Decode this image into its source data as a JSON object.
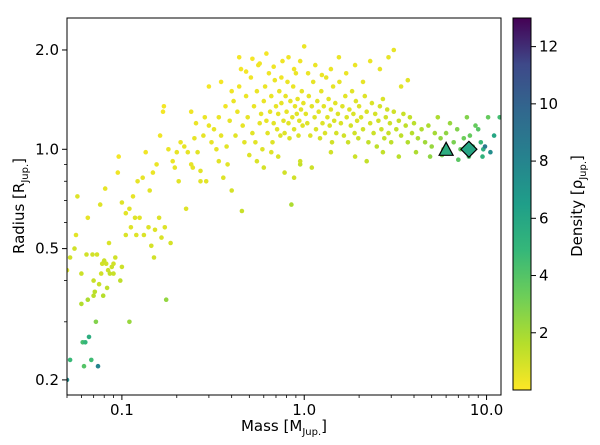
{
  "chart_data": {
    "type": "scatter",
    "title": "",
    "xlabel": {
      "main": "Mass [M",
      "sub": "Jup.",
      "close": "]"
    },
    "ylabel": {
      "main": "Radius [R",
      "sub": "Jup.",
      "close": "]"
    },
    "xscale": "log",
    "yscale": "log",
    "xlim": [
      0.05,
      12
    ],
    "ylim": [
      0.18,
      2.5
    ],
    "xticks": [
      {
        "value": 0.1,
        "label": "0.1"
      },
      {
        "value": 1.0,
        "label": "1.0"
      },
      {
        "value": 10.0,
        "label": "10.0"
      }
    ],
    "yticks": [
      {
        "value": 0.2,
        "label": "0.2"
      },
      {
        "value": 0.5,
        "label": "0.5"
      },
      {
        "value": 1.0,
        "label": "1.0"
      },
      {
        "value": 2.0,
        "label": "2.0"
      }
    ],
    "grid": false,
    "colorbar": {
      "label": "Density [ρ",
      "label_sub": "Jup.",
      "label_close": "]",
      "min": 0,
      "max": 13,
      "ticks": [
        {
          "value": 2,
          "label": "2"
        },
        {
          "value": 4,
          "label": "4"
        },
        {
          "value": 6,
          "label": "6"
        },
        {
          "value": 8,
          "label": "8"
        },
        {
          "value": 10,
          "label": "10"
        },
        {
          "value": 12,
          "label": "12"
        }
      ],
      "colormap": "viridis_r"
    },
    "points": [
      [
        0.05,
        0.2,
        7.5
      ],
      [
        0.05,
        0.43,
        0.8
      ],
      [
        0.052,
        0.47,
        1.0
      ],
      [
        0.052,
        0.23,
        4.8
      ],
      [
        0.055,
        0.5,
        1.0
      ],
      [
        0.056,
        0.55,
        0.6
      ],
      [
        0.057,
        0.72,
        0.7
      ],
      [
        0.06,
        0.42,
        1.1
      ],
      [
        0.06,
        0.34,
        1.7
      ],
      [
        0.061,
        0.26,
        4.4
      ],
      [
        0.062,
        0.22,
        4.0
      ],
      [
        0.063,
        0.26,
        5.0
      ],
      [
        0.064,
        0.48,
        1.0
      ],
      [
        0.065,
        0.35,
        1.8
      ],
      [
        0.065,
        0.62,
        0.5
      ],
      [
        0.066,
        0.27,
        5.5
      ],
      [
        0.068,
        0.23,
        4.6
      ],
      [
        0.069,
        0.48,
        1.0
      ],
      [
        0.07,
        0.4,
        1.2
      ],
      [
        0.07,
        0.36,
        1.5
      ],
      [
        0.071,
        0.37,
        1.5
      ],
      [
        0.072,
        0.3,
        2.8
      ],
      [
        0.073,
        0.48,
        0.9
      ],
      [
        0.074,
        0.22,
        8.0
      ],
      [
        0.075,
        0.39,
        1.2
      ],
      [
        0.076,
        0.68,
        0.7
      ],
      [
        0.077,
        0.42,
        1.0
      ],
      [
        0.078,
        0.45,
        1.0
      ],
      [
        0.079,
        0.36,
        1.6
      ],
      [
        0.08,
        0.46,
        1.1
      ],
      [
        0.081,
        0.76,
        0.5
      ],
      [
        0.082,
        0.45,
        1.0
      ],
      [
        0.083,
        0.38,
        1.4
      ],
      [
        0.084,
        0.43,
        1.1
      ],
      [
        0.085,
        0.52,
        0.8
      ],
      [
        0.086,
        0.42,
        1.3
      ],
      [
        0.088,
        0.44,
        1.1
      ],
      [
        0.09,
        0.42,
        1.2
      ],
      [
        0.09,
        0.45,
        1.0
      ],
      [
        0.092,
        0.47,
        1.0
      ],
      [
        0.095,
        0.85,
        0.3
      ],
      [
        0.096,
        0.95,
        0.2
      ],
      [
        0.098,
        0.4,
        1.4
      ],
      [
        0.1,
        0.44,
        1.1
      ],
      [
        0.1,
        0.69,
        0.7
      ],
      [
        0.105,
        0.64,
        0.6
      ],
      [
        0.105,
        0.55,
        0.8
      ],
      [
        0.11,
        0.66,
        0.6
      ],
      [
        0.11,
        0.3,
        2.3
      ],
      [
        0.112,
        0.58,
        0.7
      ],
      [
        0.115,
        0.72,
        0.5
      ],
      [
        0.118,
        0.62,
        0.7
      ],
      [
        0.12,
        0.55,
        0.7
      ],
      [
        0.122,
        0.8,
        0.5
      ],
      [
        0.125,
        0.62,
        0.6
      ],
      [
        0.13,
        0.82,
        0.5
      ],
      [
        0.132,
        0.55,
        0.8
      ],
      [
        0.135,
        0.98,
        0.3
      ],
      [
        0.14,
        0.58,
        0.7
      ],
      [
        0.142,
        0.75,
        0.6
      ],
      [
        0.145,
        0.51,
        0.9
      ],
      [
        0.148,
        0.85,
        0.4
      ],
      [
        0.15,
        0.47,
        1.0
      ],
      [
        0.152,
        0.57,
        0.7
      ],
      [
        0.155,
        0.9,
        0.4
      ],
      [
        0.16,
        0.62,
        0.7
      ],
      [
        0.162,
        1.1,
        0.3
      ],
      [
        0.165,
        0.54,
        0.8
      ],
      [
        0.168,
        1.3,
        0.2
      ],
      [
        0.17,
        1.35,
        0.2
      ],
      [
        0.172,
        0.58,
        0.7
      ],
      [
        0.175,
        0.35,
        2.4
      ],
      [
        0.18,
        1.0,
        0.4
      ],
      [
        0.185,
        0.52,
        0.9
      ],
      [
        0.19,
        0.92,
        0.4
      ],
      [
        0.195,
        0.88,
        0.5
      ],
      [
        0.2,
        0.98,
        0.5
      ],
      [
        0.205,
        0.8,
        0.6
      ],
      [
        0.21,
        1.05,
        0.4
      ],
      [
        0.22,
        1.02,
        0.5
      ],
      [
        0.225,
        0.66,
        0.7
      ],
      [
        0.23,
        0.98,
        0.5
      ],
      [
        0.24,
        1.3,
        0.3
      ],
      [
        0.245,
        0.88,
        0.5
      ],
      [
        0.25,
        1.08,
        0.5
      ],
      [
        0.255,
        1.2,
        0.4
      ],
      [
        0.26,
        0.98,
        0.6
      ],
      [
        0.27,
        0.8,
        0.6
      ],
      [
        0.28,
        1.1,
        0.5
      ],
      [
        0.285,
        1.25,
        0.4
      ],
      [
        0.29,
        0.8,
        0.6
      ],
      [
        0.3,
        1.18,
        0.4
      ],
      [
        0.31,
        1.05,
        0.5
      ],
      [
        0.32,
        1.15,
        0.5
      ],
      [
        0.33,
        1.0,
        0.5
      ],
      [
        0.34,
        1.25,
        0.4
      ],
      [
        0.35,
        1.1,
        0.5
      ],
      [
        0.36,
        0.82,
        0.7
      ],
      [
        0.37,
        1.35,
        0.3
      ],
      [
        0.375,
        1.02,
        0.6
      ],
      [
        0.38,
        0.9,
        0.6
      ],
      [
        0.39,
        1.22,
        0.5
      ],
      [
        0.4,
        0.75,
        0.9
      ],
      [
        0.41,
        1.4,
        0.4
      ],
      [
        0.42,
        1.1,
        0.6
      ],
      [
        0.43,
        1.3,
        0.4
      ],
      [
        0.44,
        1.55,
        0.3
      ],
      [
        0.45,
        1.75,
        0.2
      ],
      [
        0.455,
        0.65,
        1.2
      ],
      [
        0.46,
        1.18,
        0.5
      ],
      [
        0.47,
        1.05,
        0.6
      ],
      [
        0.48,
        1.45,
        0.4
      ],
      [
        0.49,
        1.25,
        0.5
      ],
      [
        0.5,
        0.96,
        0.7
      ],
      [
        0.51,
        1.65,
        0.3
      ],
      [
        0.52,
        1.12,
        0.6
      ],
      [
        0.53,
        1.35,
        0.4
      ],
      [
        0.54,
        1.05,
        0.6
      ],
      [
        0.55,
        1.5,
        0.4
      ],
      [
        0.56,
        1.8,
        0.3
      ],
      [
        0.57,
        1.2,
        0.5
      ],
      [
        0.58,
        1.28,
        0.5
      ],
      [
        0.59,
        1.0,
        0.7
      ],
      [
        0.6,
        1.4,
        0.4
      ],
      [
        0.61,
        1.55,
        0.4
      ],
      [
        0.62,
        1.22,
        0.5
      ],
      [
        0.63,
        1.12,
        0.6
      ],
      [
        0.64,
        1.7,
        0.3
      ],
      [
        0.65,
        1.3,
        0.5
      ],
      [
        0.66,
        1.45,
        0.4
      ],
      [
        0.67,
        1.05,
        0.7
      ],
      [
        0.68,
        1.2,
        0.6
      ],
      [
        0.69,
        1.62,
        0.4
      ],
      [
        0.7,
        1.35,
        0.5
      ],
      [
        0.71,
        1.15,
        0.6
      ],
      [
        0.72,
        1.28,
        0.5
      ],
      [
        0.73,
        1.5,
        0.4
      ],
      [
        0.74,
        1.1,
        0.7
      ],
      [
        0.75,
        1.38,
        0.5
      ],
      [
        0.76,
        1.85,
        0.3
      ],
      [
        0.77,
        1.22,
        0.6
      ],
      [
        0.78,
        1.12,
        0.7
      ],
      [
        0.79,
        1.45,
        0.5
      ],
      [
        0.8,
        1.3,
        0.5
      ],
      [
        0.81,
        1.6,
        0.4
      ],
      [
        0.82,
        1.2,
        0.6
      ],
      [
        0.83,
        1.08,
        0.7
      ],
      [
        0.84,
        1.4,
        0.5
      ],
      [
        0.85,
        0.68,
        1.8
      ],
      [
        0.86,
        1.25,
        0.6
      ],
      [
        0.87,
        1.55,
        0.4
      ],
      [
        0.88,
        1.15,
        0.7
      ],
      [
        0.89,
        1.35,
        0.5
      ],
      [
        0.9,
        1.7,
        0.4
      ],
      [
        0.91,
        1.28,
        0.6
      ],
      [
        0.92,
        1.42,
        0.5
      ],
      [
        0.93,
        1.1,
        0.7
      ],
      [
        0.94,
        1.22,
        0.6
      ],
      [
        0.95,
        0.9,
        1.3
      ],
      [
        0.96,
        1.32,
        0.6
      ],
      [
        0.97,
        1.5,
        0.5
      ],
      [
        0.98,
        1.18,
        0.7
      ],
      [
        0.99,
        1.38,
        0.5
      ],
      [
        1.0,
        2.05,
        0.4
      ],
      [
        1.02,
        1.28,
        0.6
      ],
      [
        1.04,
        1.2,
        0.7
      ],
      [
        1.06,
        1.45,
        0.5
      ],
      [
        1.08,
        1.1,
        0.7
      ],
      [
        1.1,
        1.35,
        0.6
      ],
      [
        1.12,
        1.6,
        0.5
      ],
      [
        1.14,
        1.25,
        0.7
      ],
      [
        1.16,
        1.15,
        0.8
      ],
      [
        1.18,
        1.4,
        0.6
      ],
      [
        1.2,
        1.3,
        0.6
      ],
      [
        1.22,
        1.08,
        0.9
      ],
      [
        1.24,
        1.5,
        0.5
      ],
      [
        1.26,
        1.2,
        0.7
      ],
      [
        1.28,
        1.35,
        0.6
      ],
      [
        1.3,
        1.12,
        0.8
      ],
      [
        1.32,
        1.65,
        0.5
      ],
      [
        1.34,
        1.25,
        0.7
      ],
      [
        1.36,
        1.42,
        0.6
      ],
      [
        1.38,
        1.18,
        0.8
      ],
      [
        1.4,
        1.32,
        0.7
      ],
      [
        1.42,
        1.05,
        1.0
      ],
      [
        1.44,
        1.55,
        0.5
      ],
      [
        1.46,
        1.22,
        0.8
      ],
      [
        1.48,
        1.38,
        0.6
      ],
      [
        1.5,
        1.12,
        0.9
      ],
      [
        1.53,
        1.28,
        0.7
      ],
      [
        1.56,
        1.6,
        0.5
      ],
      [
        1.59,
        1.2,
        0.8
      ],
      [
        1.62,
        1.35,
        0.7
      ],
      [
        1.65,
        1.1,
        1.0
      ],
      [
        1.68,
        1.45,
        0.6
      ],
      [
        1.71,
        1.25,
        0.8
      ],
      [
        1.74,
        1.05,
        1.1
      ],
      [
        1.77,
        1.32,
        0.7
      ],
      [
        1.8,
        1.18,
        0.9
      ],
      [
        1.83,
        1.5,
        0.6
      ],
      [
        1.86,
        1.28,
        0.8
      ],
      [
        1.89,
        1.12,
        1.0
      ],
      [
        1.92,
        1.4,
        0.7
      ],
      [
        1.95,
        1.22,
        0.8
      ],
      [
        1.98,
        1.08,
        1.1
      ],
      [
        2.0,
        1.35,
        0.7
      ],
      [
        2.05,
        1.25,
        0.8
      ],
      [
        2.1,
        1.15,
        1.0
      ],
      [
        2.15,
        1.45,
        0.7
      ],
      [
        2.2,
        1.3,
        0.8
      ],
      [
        2.25,
        1.05,
        1.3
      ],
      [
        2.3,
        1.2,
        0.9
      ],
      [
        2.35,
        1.38,
        0.8
      ],
      [
        2.4,
        1.12,
        1.1
      ],
      [
        2.45,
        1.28,
        0.9
      ],
      [
        2.5,
        1.02,
        1.4
      ],
      [
        2.55,
        1.22,
        1.0
      ],
      [
        2.6,
        1.35,
        0.9
      ],
      [
        2.65,
        1.15,
        1.1
      ],
      [
        2.7,
        1.42,
        0.8
      ],
      [
        2.75,
        1.08,
        1.3
      ],
      [
        2.8,
        1.25,
        1.0
      ],
      [
        2.85,
        1.32,
        1.0
      ],
      [
        2.9,
        1.12,
        1.2
      ],
      [
        2.95,
        1.2,
        1.1
      ],
      [
        3.0,
        1.05,
        1.4
      ],
      [
        3.1,
        1.3,
        1.0
      ],
      [
        3.2,
        1.15,
        1.3
      ],
      [
        3.3,
        1.22,
        1.2
      ],
      [
        3.4,
        1.1,
        1.4
      ],
      [
        3.5,
        1.28,
        1.2
      ],
      [
        3.6,
        1.18,
        1.4
      ],
      [
        3.7,
        1.05,
        1.7
      ],
      [
        3.8,
        1.25,
        1.3
      ],
      [
        3.9,
        1.12,
        1.6
      ],
      [
        4.0,
        1.2,
        1.5
      ],
      [
        4.2,
        1.08,
        1.8
      ],
      [
        4.4,
        1.15,
        1.7
      ],
      [
        4.6,
        1.05,
        2.1
      ],
      [
        4.8,
        1.18,
        1.8
      ],
      [
        5.0,
        1.02,
        2.3
      ],
      [
        5.2,
        1.12,
        2.0
      ],
      [
        5.4,
        1.25,
        1.8
      ],
      [
        5.6,
        1.08,
        2.4
      ],
      [
        5.8,
        1.0,
        2.8
      ],
      [
        6.0,
        1.12,
        2.5
      ],
      [
        6.3,
        1.2,
        2.3
      ],
      [
        6.6,
        1.05,
        3.0
      ],
      [
        6.9,
        1.15,
        2.8
      ],
      [
        7.2,
        1.0,
        3.5
      ],
      [
        7.5,
        1.08,
        3.3
      ],
      [
        7.8,
        1.25,
        2.8
      ],
      [
        8.1,
        1.1,
        3.5
      ],
      [
        8.4,
        1.02,
        4.2
      ],
      [
        8.7,
        1.18,
        3.5
      ],
      [
        9.0,
        1.15,
        3.9
      ],
      [
        9.3,
        1.05,
        4.8
      ],
      [
        9.6,
        1.0,
        5.5
      ],
      [
        9.8,
        1.02,
        8.5
      ],
      [
        10.2,
        1.25,
        3.5
      ],
      [
        10.5,
        0.98,
        7.5
      ],
      [
        11.0,
        1.1,
        6.0
      ],
      [
        11.8,
        1.25,
        4.5
      ],
      [
        0.3,
        1.55,
        0.2
      ],
      [
        0.35,
        1.6,
        0.2
      ],
      [
        0.4,
        1.5,
        0.3
      ],
      [
        0.44,
        1.9,
        0.2
      ],
      [
        0.48,
        1.72,
        0.2
      ],
      [
        0.52,
        1.88,
        0.2
      ],
      [
        0.57,
        1.82,
        0.3
      ],
      [
        0.62,
        1.95,
        0.2
      ],
      [
        0.68,
        1.78,
        0.3
      ],
      [
        0.75,
        1.65,
        0.3
      ],
      [
        0.82,
        1.9,
        0.3
      ],
      [
        0.88,
        1.75,
        0.3
      ],
      [
        0.95,
        1.85,
        0.3
      ],
      [
        1.05,
        1.7,
        0.4
      ],
      [
        1.15,
        1.8,
        0.4
      ],
      [
        1.25,
        1.68,
        0.4
      ],
      [
        1.4,
        1.75,
        0.4
      ],
      [
        1.55,
        1.9,
        0.4
      ],
      [
        1.7,
        1.7,
        0.4
      ],
      [
        1.9,
        1.8,
        0.4
      ],
      [
        2.1,
        1.6,
        0.5
      ],
      [
        2.3,
        1.85,
        0.4
      ],
      [
        2.6,
        1.75,
        0.5
      ],
      [
        2.9,
        1.9,
        0.5
      ],
      [
        3.1,
        2.0,
        0.5
      ],
      [
        3.4,
        1.55,
        0.6
      ],
      [
        3.7,
        1.62,
        0.6
      ],
      [
        0.88,
        0.82,
        1.0
      ],
      [
        0.95,
        0.92,
        1.0
      ],
      [
        1.1,
        0.88,
        1.1
      ],
      [
        1.4,
        0.98,
        1.0
      ],
      [
        1.9,
        0.95,
        1.1
      ],
      [
        2.2,
        0.92,
        1.3
      ],
      [
        2.7,
        0.98,
        1.3
      ],
      [
        3.3,
        0.95,
        1.5
      ],
      [
        4.1,
        0.98,
        1.8
      ],
      [
        4.9,
        0.95,
        2.5
      ],
      [
        5.7,
        0.96,
        3.0
      ],
      [
        7.0,
        0.93,
        3.8
      ],
      [
        8.0,
        0.95,
        4.2
      ],
      [
        9.5,
        0.95,
        5.2
      ],
      [
        0.55,
        0.92,
        0.8
      ],
      [
        0.6,
        0.88,
        0.9
      ],
      [
        0.66,
        0.98,
        0.7
      ],
      [
        0.72,
        0.95,
        0.8
      ],
      [
        0.78,
        0.85,
        1.0
      ],
      [
        0.34,
        0.92,
        0.6
      ],
      [
        0.27,
        0.86,
        0.6
      ],
      [
        0.24,
        0.9,
        0.5
      ]
    ],
    "highlighted": [
      {
        "marker": "triangle",
        "x": 6.0,
        "y": 1.0,
        "density": 5.5
      },
      {
        "marker": "diamond",
        "x": 8.0,
        "y": 1.0,
        "density": 6.0
      }
    ]
  }
}
